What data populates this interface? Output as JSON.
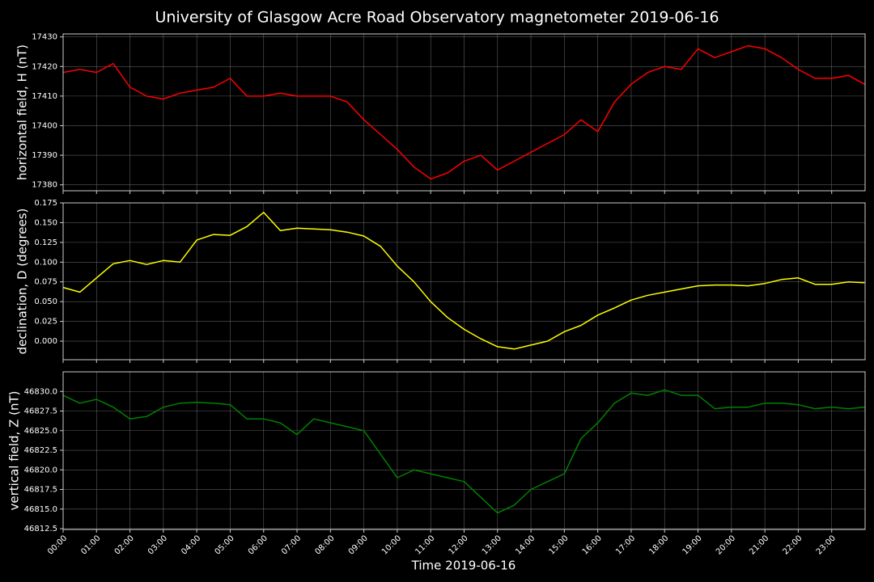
{
  "title": "University of Glasgow Acre Road Observatory magnetometer 2019-06-16",
  "xlabel": "Time 2019-06-16",
  "chart_data": [
    {
      "type": "line",
      "ylabel": "horizontal field, H (nT)",
      "color": "#ff0000",
      "grid": true,
      "x": [
        "00:00",
        "00:30",
        "01:00",
        "01:30",
        "02:00",
        "02:30",
        "03:00",
        "03:30",
        "04:00",
        "04:30",
        "05:00",
        "05:30",
        "06:00",
        "06:30",
        "07:00",
        "07:30",
        "08:00",
        "08:30",
        "09:00",
        "09:30",
        "10:00",
        "10:30",
        "11:00",
        "11:30",
        "12:00",
        "12:30",
        "13:00",
        "13:30",
        "14:00",
        "14:30",
        "15:00",
        "15:30",
        "16:00",
        "16:30",
        "17:00",
        "17:30",
        "18:00",
        "18:30",
        "19:00",
        "19:30",
        "20:00",
        "20:30",
        "21:00",
        "21:30",
        "22:00",
        "22:30",
        "23:00",
        "23:30",
        "23:59"
      ],
      "values": [
        17418,
        17419,
        17418,
        17421,
        17413,
        17410,
        17409,
        17411,
        17412,
        17413,
        17416,
        17410,
        17410,
        17411,
        17410,
        17410,
        17410,
        17408,
        17402,
        17397,
        17392,
        17386,
        17382,
        17384,
        17388,
        17390,
        17385,
        17388,
        17391,
        17394,
        17397,
        17402,
        17398,
        17408,
        17414,
        17418,
        17420,
        17419,
        17426,
        17423,
        17425,
        17427,
        17426,
        17423,
        17419,
        17416,
        17416,
        17417,
        17414
      ],
      "xlim": [
        "00:00",
        "24:00"
      ],
      "xticks": [
        "00:00",
        "01:00",
        "02:00",
        "03:00",
        "04:00",
        "05:00",
        "06:00",
        "07:00",
        "08:00",
        "09:00",
        "10:00",
        "11:00",
        "12:00",
        "13:00",
        "14:00",
        "15:00",
        "16:00",
        "17:00",
        "18:00",
        "19:00",
        "20:00",
        "21:00",
        "22:00",
        "23:00"
      ],
      "ylim": [
        17378,
        17431
      ],
      "yticks": [
        17380,
        17390,
        17400,
        17410,
        17420,
        17430
      ]
    },
    {
      "type": "line",
      "ylabel": "declination, D (degrees)",
      "color": "#ffff00",
      "grid": true,
      "x": [
        "00:00",
        "00:30",
        "01:00",
        "01:30",
        "02:00",
        "02:30",
        "03:00",
        "03:30",
        "04:00",
        "04:30",
        "05:00",
        "05:30",
        "06:00",
        "06:30",
        "07:00",
        "07:30",
        "08:00",
        "08:30",
        "09:00",
        "09:30",
        "10:00",
        "10:30",
        "11:00",
        "11:30",
        "12:00",
        "12:30",
        "13:00",
        "13:30",
        "14:00",
        "14:30",
        "15:00",
        "15:30",
        "16:00",
        "16:30",
        "17:00",
        "17:30",
        "18:00",
        "18:30",
        "19:00",
        "19:30",
        "20:00",
        "20:30",
        "21:00",
        "21:30",
        "22:00",
        "22:30",
        "23:00",
        "23:30",
        "23:59"
      ],
      "values": [
        0.068,
        0.062,
        0.08,
        0.098,
        0.102,
        0.097,
        0.102,
        0.1,
        0.128,
        0.135,
        0.134,
        0.145,
        0.163,
        0.14,
        0.143,
        0.142,
        0.141,
        0.138,
        0.133,
        0.12,
        0.095,
        0.075,
        0.05,
        0.03,
        0.015,
        0.003,
        -0.007,
        -0.01,
        -0.005,
        0.0,
        0.012,
        0.02,
        0.033,
        0.042,
        0.052,
        0.058,
        0.062,
        0.066,
        0.07,
        0.071,
        0.071,
        0.07,
        0.073,
        0.078,
        0.08,
        0.072,
        0.072,
        0.075,
        0.074
      ],
      "xlim": [
        "00:00",
        "24:00"
      ],
      "xticks": [
        "00:00",
        "01:00",
        "02:00",
        "03:00",
        "04:00",
        "05:00",
        "06:00",
        "07:00",
        "08:00",
        "09:00",
        "10:00",
        "11:00",
        "12:00",
        "13:00",
        "14:00",
        "15:00",
        "16:00",
        "17:00",
        "18:00",
        "19:00",
        "20:00",
        "21:00",
        "22:00",
        "23:00"
      ],
      "ylim": [
        -0.0235,
        0.175
      ],
      "yticks": [
        {
          "value": 0,
          "label": "0.000"
        },
        0.025,
        {
          "value": 0.05,
          "label": "0.050"
        },
        0.075,
        {
          "value": 0.1,
          "label": "0.100"
        },
        0.125,
        {
          "value": 0.15,
          "label": "0.150"
        },
        0.175
      ]
    },
    {
      "type": "line",
      "ylabel": "vertical field, Z (nT)",
      "color": "#008000",
      "grid": true,
      "x": [
        "00:00",
        "00:30",
        "01:00",
        "01:30",
        "02:00",
        "02:30",
        "03:00",
        "03:30",
        "04:00",
        "04:30",
        "05:00",
        "05:30",
        "06:00",
        "06:30",
        "07:00",
        "07:30",
        "08:00",
        "08:30",
        "09:00",
        "09:30",
        "10:00",
        "10:30",
        "11:00",
        "11:30",
        "12:00",
        "12:30",
        "13:00",
        "13:30",
        "14:00",
        "14:30",
        "15:00",
        "15:30",
        "16:00",
        "16:30",
        "17:00",
        "17:30",
        "18:00",
        "18:30",
        "19:00",
        "19:30",
        "20:00",
        "20:30",
        "21:00",
        "21:30",
        "22:00",
        "22:30",
        "23:00",
        "23:30",
        "23:59"
      ],
      "values": [
        46829.5,
        46828.5,
        46829,
        46828,
        46826.5,
        46826.8,
        46828,
        46828.5,
        46828.6,
        46828.5,
        46828.3,
        46826.5,
        46826.5,
        46826,
        46824.5,
        46826.5,
        46826,
        46825.5,
        46825,
        46822,
        46819,
        46820,
        46819.5,
        46819,
        46818.5,
        46816.5,
        46814.5,
        46815.5,
        46817.5,
        46818.5,
        46819.5,
        46824,
        46826,
        46828.5,
        46829.8,
        46829.5,
        46830.2,
        46829.5,
        46829.5,
        46827.8,
        46828,
        46828,
        46828.5,
        46828.5,
        46828.3,
        46827.8,
        46828,
        46827.8,
        46828
      ],
      "xlim": [
        "00:00",
        "24:00"
      ],
      "xticks": [
        "00:00",
        "01:00",
        "02:00",
        "03:00",
        "04:00",
        "05:00",
        "06:00",
        "07:00",
        "08:00",
        "09:00",
        "10:00",
        "11:00",
        "12:00",
        "13:00",
        "14:00",
        "15:00",
        "16:00",
        "17:00",
        "18:00",
        "19:00",
        "20:00",
        "21:00",
        "22:00",
        "23:00"
      ],
      "ylim": [
        46812.4,
        46832.5
      ],
      "yticks": [
        46812.5,
        {
          "value": 46815,
          "label": "46815.0"
        },
        46817.5,
        {
          "value": 46820,
          "label": "46820.0"
        },
        46822.5,
        {
          "value": 46825,
          "label": "46825.0"
        },
        46827.5,
        {
          "value": 46830,
          "label": "46830.0"
        }
      ]
    }
  ]
}
